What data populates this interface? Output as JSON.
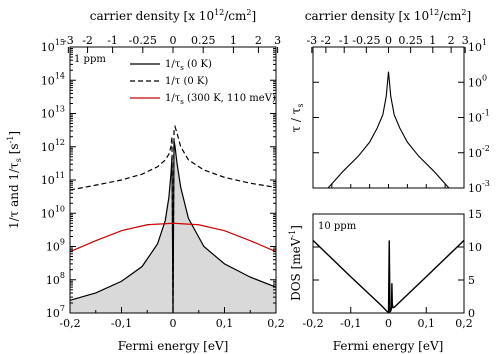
{
  "chart_data": [
    {
      "panel": "left",
      "type": "line",
      "annotation": "1 ppm",
      "xlabel": "Fermi energy [eV]",
      "top_xlabel": "carrier density [x 10^12/cm^2]",
      "ylabel": "1/τ and 1/τ_s [s^-1]",
      "xlim": [
        -0.2,
        0.2
      ],
      "ylim": [
        10000000.0,
        1000000000000000.0
      ],
      "yscale": "log",
      "xticks": [
        -0.2,
        -0.1,
        0,
        0.1,
        0.2
      ],
      "xtick_labels": [
        "-0,2",
        "-0,1",
        "0",
        "0,1",
        "0,2"
      ],
      "yticks_exp": [
        7,
        8,
        9,
        10,
        11,
        12,
        13,
        14,
        15
      ],
      "top_ticks_n": [
        -3,
        -2,
        -1,
        -0.25,
        0,
        0.25,
        1,
        2,
        3
      ],
      "top_tick_labels": [
        "-3",
        "-2",
        "-1",
        "-0.25",
        "0",
        "0.25",
        "1",
        "2",
        "3"
      ],
      "legend_position": "top-right",
      "series": [
        {
          "name": "1/τ_s (0 K)",
          "style": "solid",
          "color": "#000000",
          "fill": "#d9d9d9",
          "x": [
            -0.2,
            -0.15,
            -0.1,
            -0.06,
            -0.03,
            -0.015,
            -0.008,
            -0.004,
            -0.002,
            0.0,
            0.002,
            0.004,
            0.008,
            0.015,
            0.03,
            0.06,
            0.1,
            0.15,
            0.2
          ],
          "y": [
            24000000.0,
            40000000.0,
            90000000.0,
            250000000.0,
            1200000000.0,
            6000000000.0,
            30000000000.0,
            150000000000.0,
            500000000000.0,
            10000000.0,
            1500000000000.0,
            1000000000000.0,
            300000000000.0,
            60000000000.0,
            7000000000.0,
            1000000000.0,
            300000000.0,
            120000000.0,
            60000000.0
          ]
        },
        {
          "name": "1/τ (0 K)",
          "style": "dashed",
          "color": "#000000",
          "x": [
            -0.2,
            -0.15,
            -0.1,
            -0.06,
            -0.03,
            -0.015,
            -0.008,
            -0.004,
            -0.002,
            0.0,
            0.002,
            0.004,
            0.008,
            0.015,
            0.03,
            0.06,
            0.1,
            0.15,
            0.2
          ],
          "y": [
            50000000000.0,
            70000000000.0,
            100000000000.0,
            150000000000.0,
            250000000000.0,
            400000000000.0,
            600000000000.0,
            1000000000000.0,
            2000000000000.0,
            10000000.0,
            3000000000000.0,
            4000000000000.0,
            2500000000000.0,
            1000000000000.0,
            400000000000.0,
            200000000000.0,
            120000000000.0,
            80000000000.0,
            60000000000.0
          ]
        },
        {
          "name": "1/τ_s (300 K, 110 meV)",
          "style": "solid",
          "color": "#cc0000",
          "x": [
            -0.2,
            -0.15,
            -0.1,
            -0.05,
            0.0,
            0.05,
            0.1,
            0.15,
            0.2
          ],
          "y": [
            700000000.0,
            1500000000.0,
            3000000000.0,
            4500000000.0,
            5000000000.0,
            4500000000.0,
            3000000000.0,
            1500000000.0,
            700000000.0
          ]
        }
      ]
    },
    {
      "panel": "right-top",
      "type": "line",
      "top_xlabel": "carrier density [x 10^12/cm^2]",
      "ylabel": "τ / τ_s",
      "xlim": [
        -0.2,
        0.2
      ],
      "ylim_exp": [
        -3,
        1
      ],
      "yscale": "log",
      "yticks_exp": [
        -3,
        -2,
        -1,
        0,
        1
      ],
      "top_ticks_n": [
        -3,
        -2,
        -1,
        -0.25,
        0,
        0.25,
        1,
        2,
        3
      ],
      "top_tick_labels": [
        "-3",
        "-2",
        "-1",
        "-0.25",
        "0",
        "0.25",
        "1",
        "2",
        "3"
      ],
      "series": [
        {
          "style": "solid",
          "color": "#000000",
          "x": [
            -0.16,
            -0.12,
            -0.08,
            -0.05,
            -0.03,
            -0.015,
            -0.006,
            0.0,
            0.006,
            0.015,
            0.03,
            0.05,
            0.08,
            0.12,
            0.16
          ],
          "y": [
            0.001,
            0.003,
            0.008,
            0.02,
            0.05,
            0.12,
            0.4,
            2.0,
            0.4,
            0.12,
            0.05,
            0.02,
            0.008,
            0.003,
            0.001
          ]
        }
      ]
    },
    {
      "panel": "right-bottom",
      "type": "line",
      "annotation": "10 ppm",
      "xlabel": "Fermi energy [eV]",
      "ylabel": "DOS [meV^-1]",
      "xlim": [
        -0.2,
        0.2
      ],
      "ylim": [
        0,
        15
      ],
      "yticks": [
        0,
        5,
        10,
        15
      ],
      "xticks": [
        -0.2,
        -0.1,
        0,
        0.1,
        0.2
      ],
      "xtick_labels": [
        "-0,2",
        "-0,1",
        "0",
        "0,1",
        "0,2"
      ],
      "series": [
        {
          "style": "solid",
          "color": "#000000",
          "x": [
            -0.2,
            -0.1,
            -0.02,
            -0.005,
            0.0,
            0.002,
            0.004,
            0.006,
            0.008,
            0.009,
            0.01,
            0.011,
            0.012,
            0.016,
            0.025,
            0.1,
            0.2
          ],
          "y": [
            11,
            5.5,
            1.2,
            0.3,
            0.1,
            11,
            0.2,
            0.3,
            0.8,
            4.5,
            1.5,
            1.0,
            0.8,
            0.9,
            1.4,
            5.5,
            11
          ]
        }
      ]
    }
  ]
}
